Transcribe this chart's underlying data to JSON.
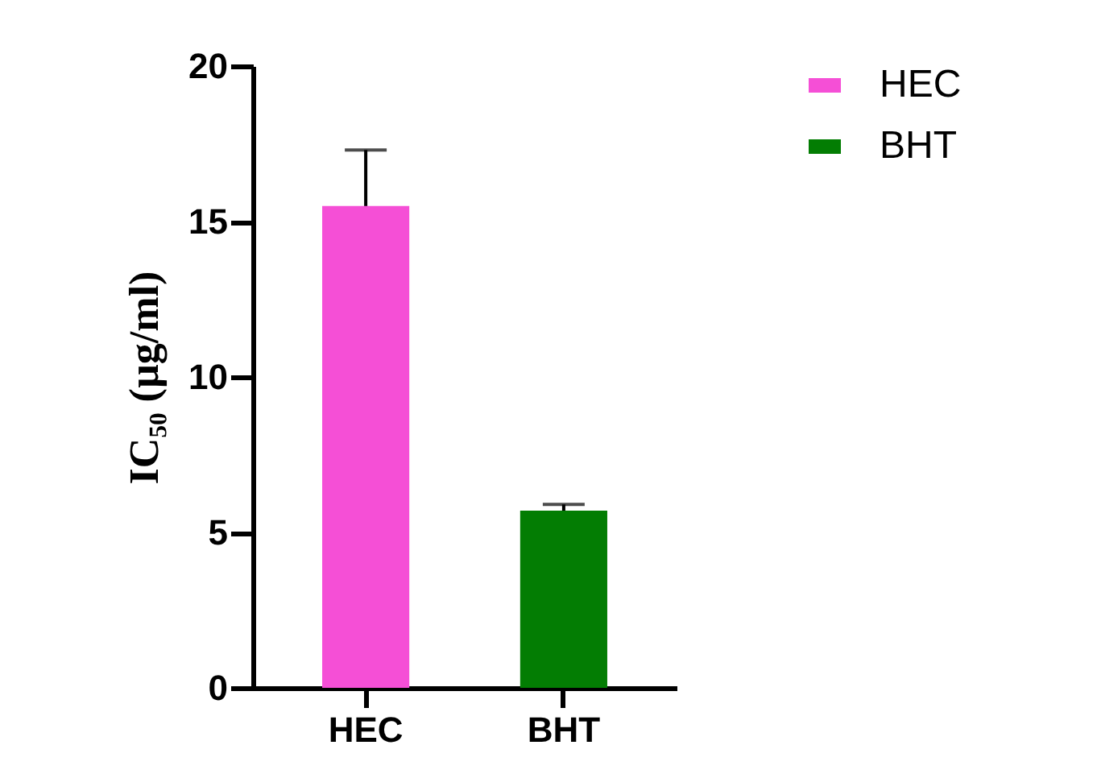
{
  "chart_data": {
    "type": "bar",
    "ylabel": "IC₅₀ (µg/ml)",
    "categories": [
      "HEC",
      "BHT"
    ],
    "series": [
      {
        "name": "HEC",
        "color": "#f54fd6",
        "values": [
          15.5,
          null
        ],
        "errors": [
          1.8,
          null
        ]
      },
      {
        "name": "BHT",
        "color": "#037d03",
        "values": [
          null,
          5.7
        ],
        "errors": [
          null,
          0.2
        ]
      }
    ],
    "ylim": [
      0,
      20
    ],
    "yticks": [
      0,
      5,
      10,
      15,
      20
    ],
    "grid": false,
    "legend": "top right"
  }
}
